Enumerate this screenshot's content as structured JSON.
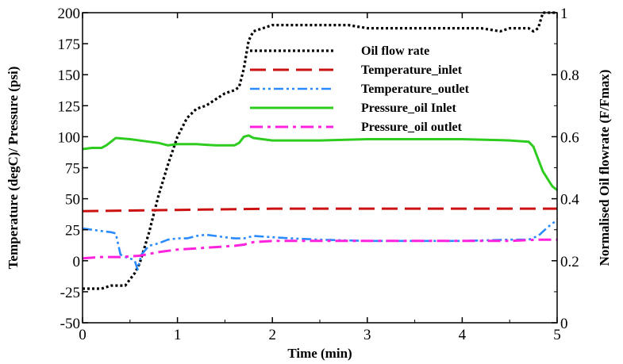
{
  "chart_data": {
    "type": "line",
    "xlabel": "Time (min)",
    "ylabel_left": "Temperature (degC)/ Pressure (psi)",
    "ylabel_right": "Normalised Oil flowrate (F/Fmax)",
    "xlim": [
      0,
      5
    ],
    "ylim_left": [
      -50,
      200
    ],
    "ylim_right": [
      0,
      1
    ],
    "x_ticks": [
      "0",
      "1",
      "2",
      "3",
      "4",
      "5"
    ],
    "y_left_ticks": [
      "-50",
      "-25",
      "0",
      "25",
      "50",
      "75",
      "100",
      "125",
      "150",
      "175",
      "200"
    ],
    "y_right_ticks": [
      "0",
      "0.2",
      "0.4",
      "0.6",
      "0.8",
      "1"
    ],
    "grid": false,
    "legend_position": "top-right",
    "series": [
      {
        "name": "Oil flow rate",
        "axis": "right",
        "color": "#000000",
        "style": "dotted",
        "x": [
          0,
          0.05,
          0.1,
          0.2,
          0.3,
          0.4,
          0.45,
          0.5,
          0.55,
          0.6,
          0.7,
          0.8,
          0.9,
          1.0,
          1.1,
          1.2,
          1.3,
          1.4,
          1.5,
          1.6,
          1.65,
          1.7,
          1.75,
          1.8,
          1.9,
          2.0,
          2.2,
          2.5,
          2.8,
          3.0,
          3.3,
          3.6,
          3.9,
          4.2,
          4.4,
          4.5,
          4.7,
          4.75,
          4.8,
          4.85,
          5.0
        ],
        "y": [
          0.11,
          0.11,
          0.11,
          0.11,
          0.12,
          0.12,
          0.12,
          0.14,
          0.16,
          0.19,
          0.29,
          0.41,
          0.51,
          0.6,
          0.66,
          0.69,
          0.7,
          0.72,
          0.74,
          0.75,
          0.76,
          0.82,
          0.91,
          0.94,
          0.95,
          0.96,
          0.96,
          0.96,
          0.96,
          0.95,
          0.95,
          0.95,
          0.95,
          0.95,
          0.94,
          0.95,
          0.95,
          0.94,
          0.95,
          1.0,
          1.0
        ]
      },
      {
        "name": "Temperature_inlet",
        "axis": "left",
        "color": "#cc1111",
        "style": "dashed",
        "x": [
          0,
          1.0,
          2.0,
          3.0,
          4.0,
          5.0
        ],
        "y": [
          40,
          41,
          42,
          42,
          42,
          42
        ]
      },
      {
        "name": "Temperature_outlet",
        "axis": "left",
        "color": "#2a8bff",
        "style": "dashdotdot",
        "x": [
          0,
          0.1,
          0.2,
          0.3,
          0.35,
          0.4,
          0.45,
          0.5,
          0.55,
          0.58,
          0.62,
          0.7,
          0.8,
          0.9,
          1.0,
          1.1,
          1.2,
          1.3,
          1.4,
          1.5,
          1.6,
          1.7,
          1.8,
          2.0,
          2.2,
          2.5,
          3.0,
          3.5,
          4.0,
          4.5,
          4.7,
          4.8,
          4.9,
          5.0
        ],
        "y": [
          26,
          25,
          24,
          23,
          22,
          5,
          3,
          2,
          0,
          -7,
          5,
          12,
          14,
          17,
          18,
          18,
          20,
          21,
          20,
          19,
          18,
          18,
          20,
          19,
          18,
          17,
          16,
          16,
          16,
          17,
          17,
          20,
          27,
          33
        ]
      },
      {
        "name": "Pressure_oil Inlet",
        "axis": "left",
        "color": "#2ecc1f",
        "style": "solid",
        "x": [
          0,
          0.1,
          0.2,
          0.25,
          0.3,
          0.35,
          0.5,
          0.7,
          0.8,
          0.9,
          1.0,
          1.2,
          1.4,
          1.6,
          1.65,
          1.7,
          1.75,
          1.8,
          2.0,
          2.5,
          3.0,
          3.5,
          4.0,
          4.5,
          4.7,
          4.75,
          4.8,
          4.85,
          4.9,
          4.95,
          5.0
        ],
        "y": [
          90,
          91,
          91,
          93,
          96,
          99,
          98,
          96,
          95,
          93,
          94,
          94,
          93,
          93,
          95,
          100,
          101,
          99,
          97,
          97,
          98,
          98,
          98,
          97,
          96,
          92,
          82,
          72,
          66,
          60,
          57
        ]
      },
      {
        "name": "Pressure_oil outlet",
        "axis": "left",
        "color": "#ff22dd",
        "style": "dashdot",
        "x": [
          0,
          0.2,
          0.4,
          0.6,
          0.8,
          1.0,
          1.2,
          1.4,
          1.6,
          1.7,
          1.8,
          2.0,
          2.5,
          3.0,
          3.5,
          4.0,
          4.5,
          4.8,
          5.0
        ],
        "y": [
          2,
          3,
          3,
          4,
          7,
          9,
          10,
          11,
          12,
          13,
          15,
          16,
          16,
          16,
          16,
          16,
          16,
          17,
          17
        ]
      }
    ]
  }
}
